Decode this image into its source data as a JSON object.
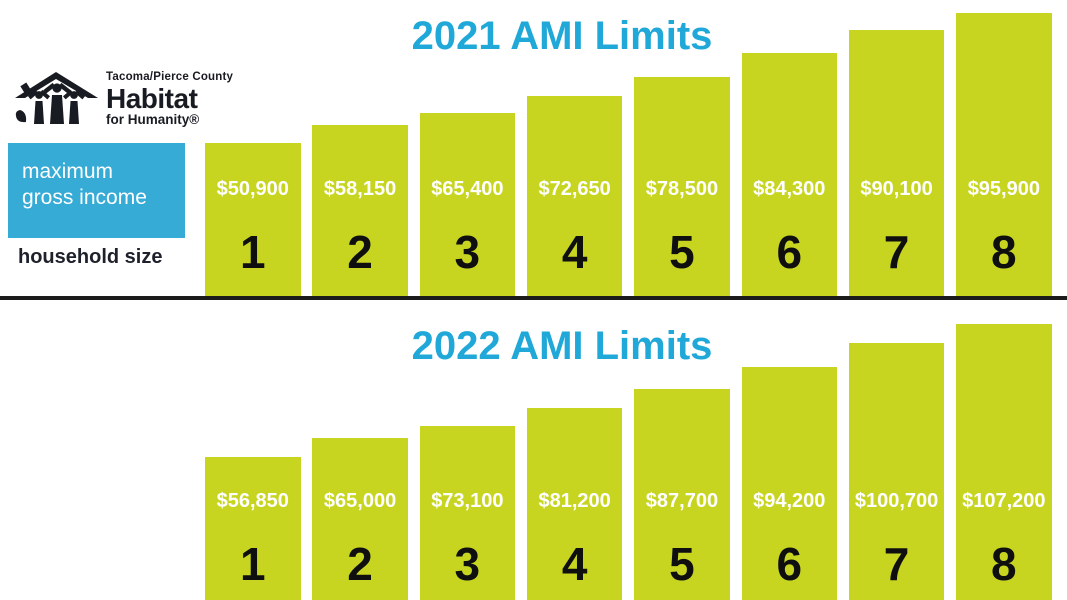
{
  "logo": {
    "county": "Tacoma/Pierce County",
    "name": "Habitat",
    "tagline": "for Humanity®"
  },
  "legend": {
    "income_label": "maximum gross income",
    "household_label": "household size"
  },
  "colors": {
    "bar": "#c7d521",
    "title": "#1fa8d8",
    "income_box": "#36abd6",
    "value_text": "#ffffff",
    "number_text": "#0f0f0f",
    "divider": "#1b1b1b"
  },
  "chart_data": [
    {
      "type": "bar",
      "title": "2021 AMI Limits",
      "xlabel": "household size",
      "ylabel": "maximum gross income",
      "grid": false,
      "legend_position": "none",
      "categories": [
        "1",
        "2",
        "3",
        "4",
        "5",
        "6",
        "7",
        "8"
      ],
      "values": [
        50900,
        58150,
        65400,
        72650,
        78500,
        84300,
        90100,
        95900
      ],
      "value_labels": [
        "$50,900",
        "$58,150",
        "$65,400",
        "$72,650",
        "$78,500",
        "$84,300",
        "$90,100",
        "$95,900"
      ]
    },
    {
      "type": "bar",
      "title": "2022 AMI Limits",
      "xlabel": "household size",
      "ylabel": "maximum gross income",
      "grid": false,
      "legend_position": "none",
      "categories": [
        "1",
        "2",
        "3",
        "4",
        "5",
        "6",
        "7",
        "8"
      ],
      "values": [
        56850,
        65000,
        73100,
        81200,
        87700,
        94200,
        100700,
        107200
      ],
      "value_labels": [
        "$56,850",
        "$65,000",
        "$73,100",
        "$81,200",
        "$87,700",
        "$94,200",
        "$100,700",
        "$107,200"
      ]
    }
  ]
}
